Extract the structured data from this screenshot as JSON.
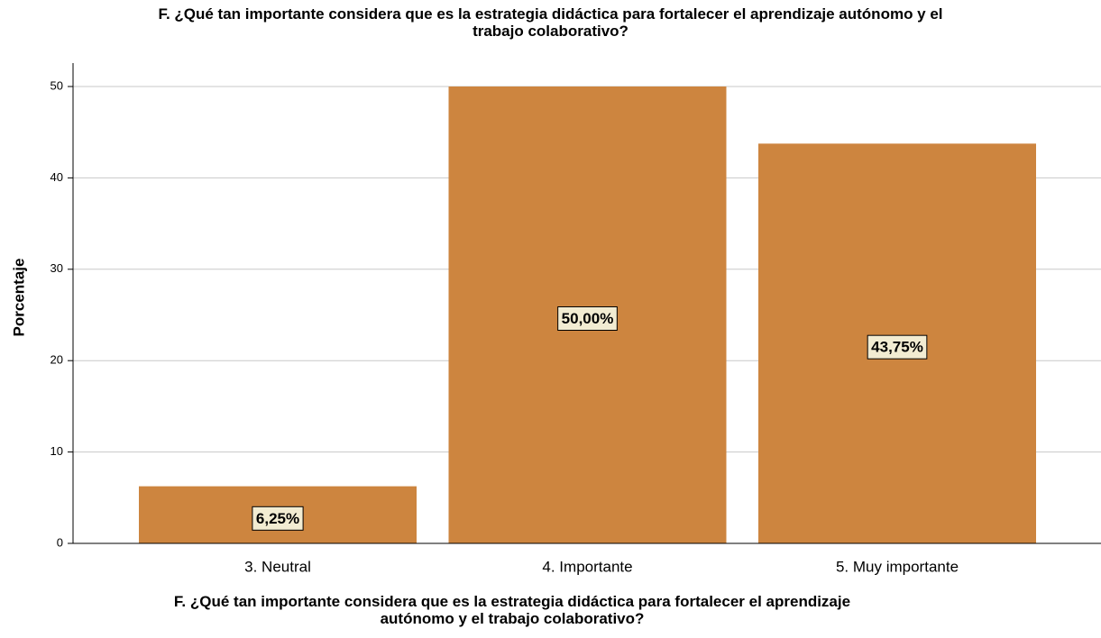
{
  "chart_data": {
    "type": "bar",
    "title": "F. ¿Qué tan importante considera que es la estrategia didáctica para fortalecer el aprendizaje autónomo y el\ntrabajo colaborativo?",
    "x_label": "F. ¿Qué tan importante considera que es la estrategia didáctica para fortalecer el aprendizaje\nautónomo y el trabajo colaborativo?",
    "y_label": "Porcentaje",
    "categories": [
      "3. Neutral",
      "4. Importante",
      "5. Muy importante"
    ],
    "values": [
      6.25,
      50,
      43.75
    ],
    "value_labels": [
      "6,25%",
      "50,00%",
      "43,75%"
    ],
    "color": "#cd853f",
    "ylim": [
      0,
      50
    ],
    "yticks": [
      0,
      10,
      20,
      30,
      40,
      50
    ],
    "grid": true
  }
}
